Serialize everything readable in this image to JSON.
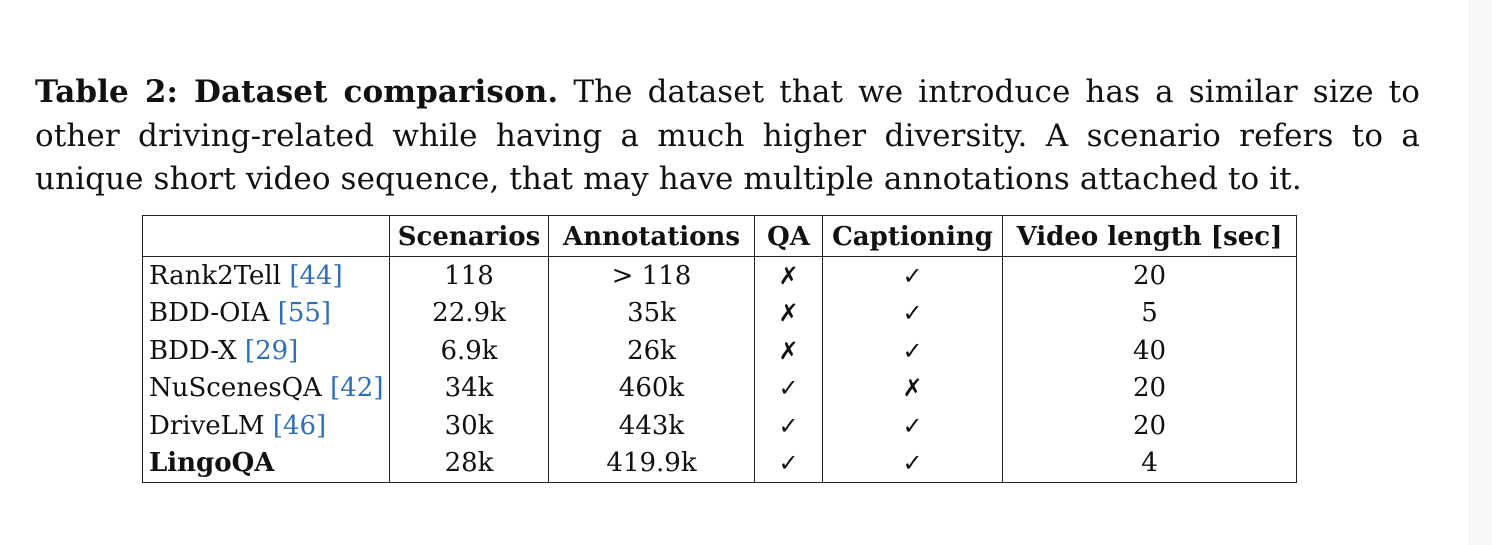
{
  "caption": {
    "lead": "Table 2: Dataset comparison.",
    "text": "The dataset that we introduce has a similar size to other driving-related while having a much higher diversity. A scenario refers to a unique short video sequence, that may have multiple annotations attached to it."
  },
  "table": {
    "headers": [
      "",
      "Scenarios",
      "Annotations",
      "QA",
      "Captioning",
      "Video length [sec]"
    ],
    "rows": [
      {
        "name": "Rank2Tell",
        "ref": "[44]",
        "scenarios": "118",
        "annotations": "> 118",
        "qa": "✗",
        "captioning": "✓",
        "video_length": "20"
      },
      {
        "name": "BDD-OIA",
        "ref": "[55]",
        "scenarios": "22.9k",
        "annotations": "35k",
        "qa": "✗",
        "captioning": "✓",
        "video_length": "5"
      },
      {
        "name": "BDD-X",
        "ref": "[29]",
        "scenarios": "6.9k",
        "annotations": "26k",
        "qa": "✗",
        "captioning": "✓",
        "video_length": "40"
      },
      {
        "name": "NuScenesQA",
        "ref": "[42]",
        "scenarios": "34k",
        "annotations": "460k",
        "qa": "✓",
        "captioning": "✗",
        "video_length": "20"
      },
      {
        "name": "DriveLM",
        "ref": "[46]",
        "scenarios": "30k",
        "annotations": "443k",
        "qa": "✓",
        "captioning": "✓",
        "video_length": "20"
      },
      {
        "name": "LingoQA",
        "ref": "",
        "scenarios": "28k",
        "annotations": "419.9k",
        "qa": "✓",
        "captioning": "✓",
        "video_length": "4"
      }
    ]
  },
  "colors": {
    "reference_link": "#2f6fb9",
    "text": "#111111",
    "rule": "#222222"
  }
}
